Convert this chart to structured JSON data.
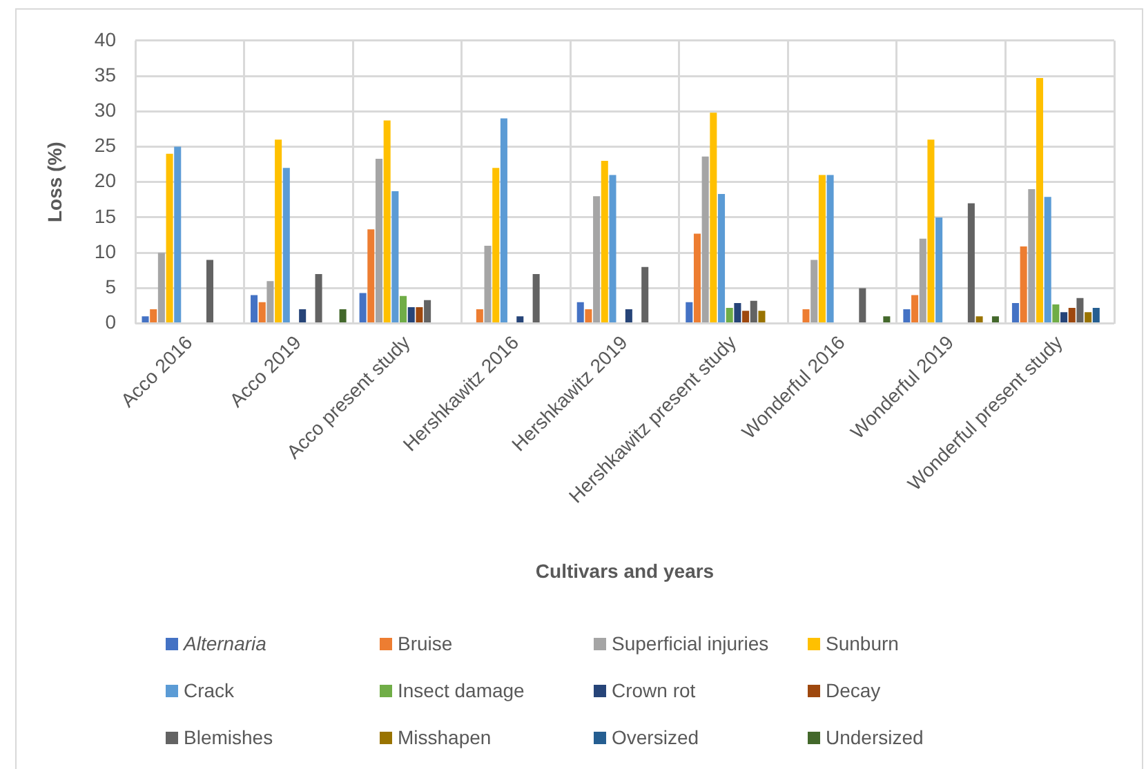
{
  "chart_data": {
    "type": "bar",
    "xlabel": "Cultivars and years",
    "ylabel": "Loss (%)",
    "categories": [
      "Acco 2016",
      "Acco 2019",
      "Acco present study",
      "Hershkawitz 2016",
      "Hershkawitz 2019",
      "Hershkawitz present study",
      "Wonderful 2016",
      "Wonderful 2019",
      "Wonderful present study"
    ],
    "series": [
      {
        "name": "Alternaria",
        "color": "#4472c4",
        "values": [
          1,
          4,
          4.3,
          null,
          3,
          3,
          null,
          2,
          2.9
        ]
      },
      {
        "name": "Bruise",
        "color": "#ed7d31",
        "values": [
          2,
          3,
          13.3,
          2,
          2,
          12.7,
          2,
          4,
          10.9
        ]
      },
      {
        "name": "Superficial injuries",
        "color": "#a5a5a5",
        "values": [
          10,
          6,
          23.3,
          11,
          18,
          23.6,
          9,
          12,
          19
        ]
      },
      {
        "name": "Sunburn",
        "color": "#ffc000",
        "values": [
          24,
          26,
          28.7,
          22,
          23,
          29.8,
          21,
          26,
          34.7
        ]
      },
      {
        "name": "Crack",
        "color": "#5b9bd5",
        "values": [
          25,
          22,
          18.7,
          29,
          21,
          18.3,
          21,
          15,
          17.9
        ]
      },
      {
        "name": "Insect damage",
        "color": "#70ad47",
        "values": [
          null,
          null,
          3.9,
          null,
          null,
          2.2,
          null,
          null,
          2.7
        ]
      },
      {
        "name": "Crown rot",
        "color": "#264478",
        "values": [
          null,
          2,
          2.3,
          1,
          2,
          2.9,
          null,
          null,
          1.6
        ]
      },
      {
        "name": "Decay",
        "color": "#9e480e",
        "values": [
          null,
          null,
          2.3,
          null,
          null,
          1.8,
          null,
          null,
          2.2
        ]
      },
      {
        "name": "Blemishes",
        "color": "#636363",
        "values": [
          9,
          7,
          3.3,
          7,
          8,
          3.2,
          5,
          17,
          3.6
        ]
      },
      {
        "name": "Misshapen",
        "color": "#997300",
        "values": [
          null,
          null,
          null,
          null,
          null,
          1.8,
          null,
          1,
          1.6
        ]
      },
      {
        "name": "Oversized",
        "color": "#255e91",
        "values": [
          null,
          null,
          null,
          null,
          null,
          null,
          null,
          null,
          2.2
        ]
      },
      {
        "name": "Undersized",
        "color": "#43682b",
        "values": [
          null,
          2,
          null,
          null,
          null,
          null,
          1,
          1,
          null
        ]
      }
    ],
    "ylim": [
      0,
      40
    ],
    "yticks": [
      0,
      5,
      10,
      15,
      20,
      25,
      30,
      35,
      40
    ],
    "grid": true,
    "legend": "bottom"
  }
}
